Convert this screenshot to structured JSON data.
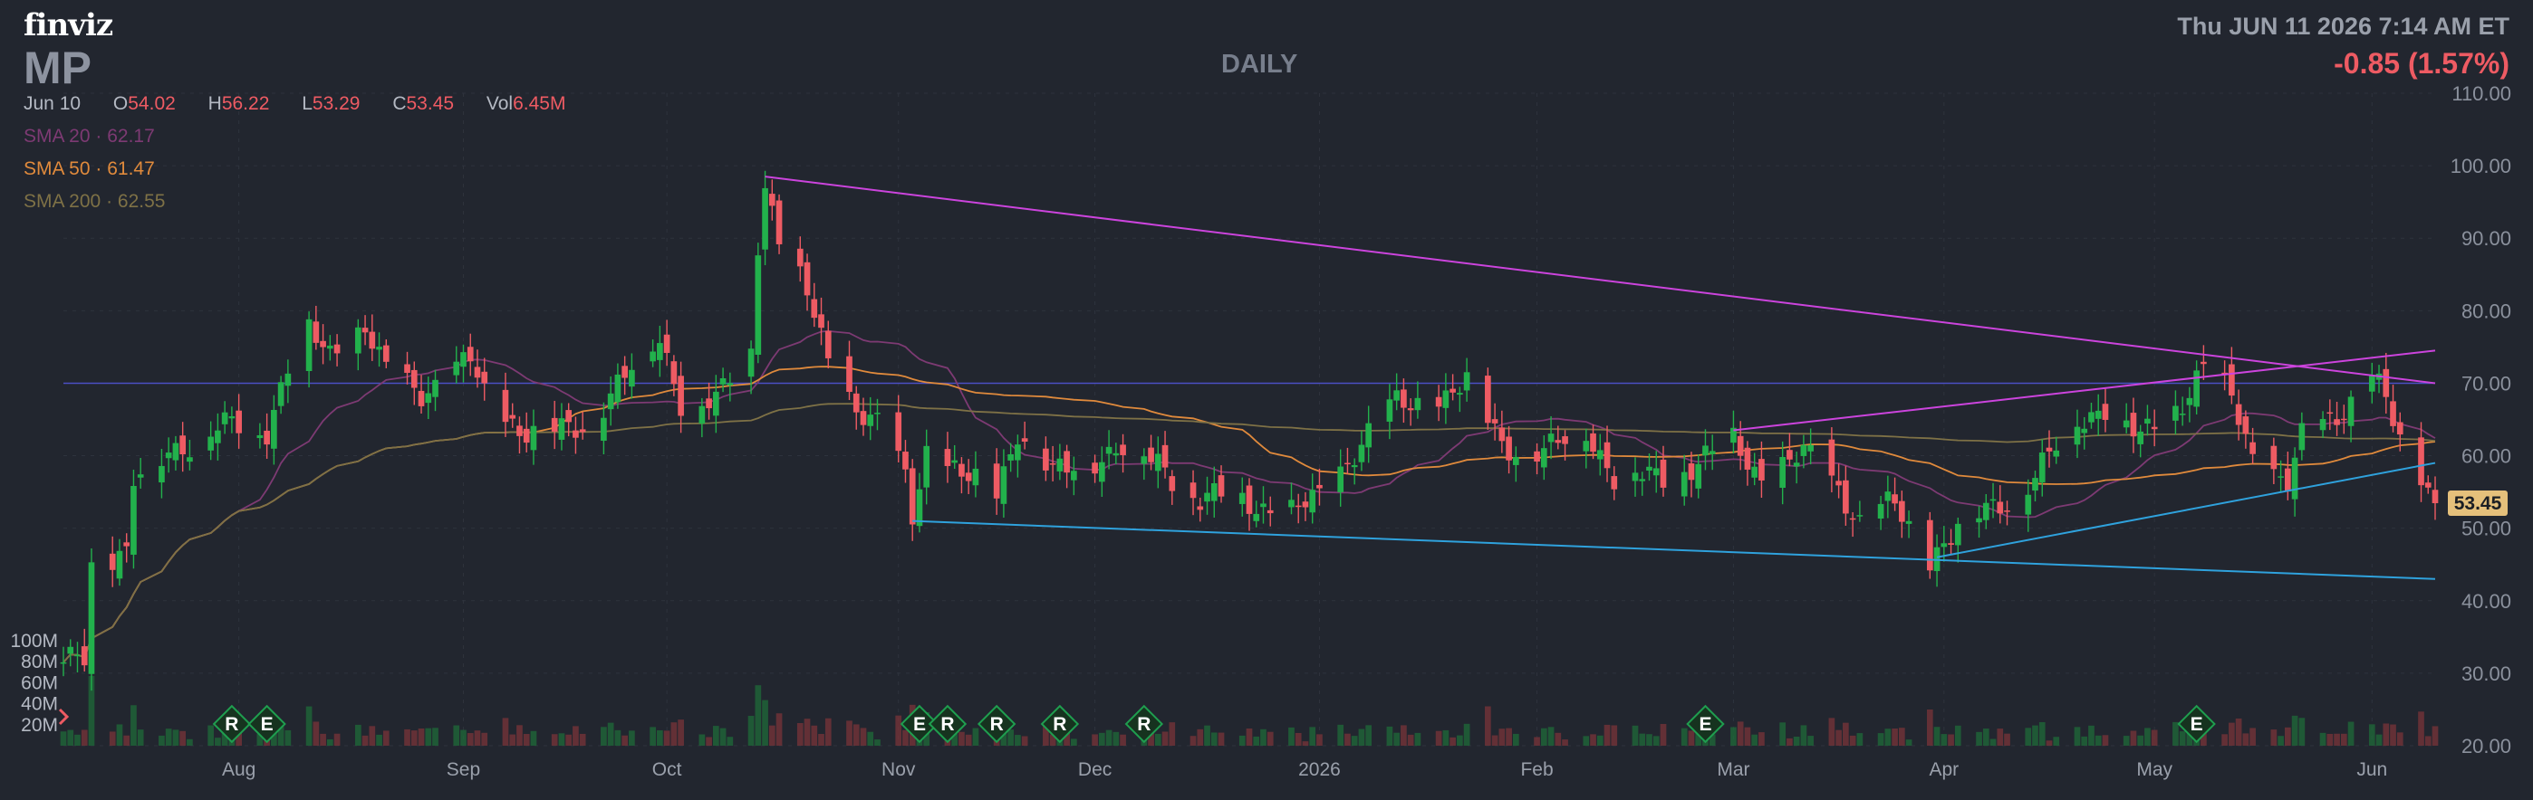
{
  "brand": "finviz",
  "ticker": "MP",
  "timeframe": "DAILY",
  "datetime": "Thu JUN 11 2026 7:14 AM ET",
  "change": "-0.85 (1.57%)",
  "ohlc": {
    "date": "Jun 10",
    "o_label": "O",
    "o": "54.02",
    "h_label": "H",
    "h": "56.22",
    "l_label": "L",
    "l": "53.29",
    "c_label": "C",
    "c": "53.45",
    "vol_label": "Vol",
    "vol": "6.45M"
  },
  "sma": [
    {
      "label": "SMA 20",
      "sep": "·",
      "value": "62.17",
      "color": "#7d3a73"
    },
    {
      "label": "SMA 50",
      "sep": "·",
      "value": "61.47",
      "color": "#e08a3c"
    },
    {
      "label": "SMA 200",
      "sep": "·",
      "value": "62.55",
      "color": "#7e7146"
    }
  ],
  "colors": {
    "background": "#22262f",
    "up": "#22b14c",
    "down": "#ee5b63",
    "trend_upper": "#cc44dd",
    "trend_lower": "#2fa2dd",
    "horizontal": "#4b4fc4",
    "event": "#1f9e4f"
  },
  "chart_data": {
    "type": "candlestick",
    "ylim": [
      20,
      110
    ],
    "y_ticks": [
      "110.00",
      "100.00",
      "90.00",
      "80.00",
      "70.00",
      "60.00",
      "50.00",
      "40.00",
      "30.00",
      "20.00"
    ],
    "y_tick_values": [
      110,
      100,
      90,
      80,
      70,
      60,
      50,
      40,
      30,
      20
    ],
    "volume_ticks": [
      "100M",
      "80M",
      "60M",
      "40M",
      "20M"
    ],
    "volume_tick_values": [
      100,
      80,
      60,
      40,
      20
    ],
    "x_labels": [
      {
        "label": "Aug",
        "date": "2025-08-01"
      },
      {
        "label": "Sep",
        "date": "2025-09-02"
      },
      {
        "label": "Oct",
        "date": "2025-10-01"
      },
      {
        "label": "Nov",
        "date": "2025-11-03"
      },
      {
        "label": "Dec",
        "date": "2025-12-01"
      },
      {
        "label": "2026",
        "date": "2026-01-02"
      },
      {
        "label": "Feb",
        "date": "2026-02-02"
      },
      {
        "label": "Mar",
        "date": "2026-03-02"
      },
      {
        "label": "Apr",
        "date": "2026-04-01"
      },
      {
        "label": "May",
        "date": "2026-05-01"
      },
      {
        "label": "Jun",
        "date": "2026-06-01"
      }
    ],
    "last_price": "53.45",
    "price_path": [
      [
        "2025-07-07",
        31
      ],
      [
        "2025-07-10",
        33
      ],
      [
        "2025-07-11",
        46
      ],
      [
        "2025-07-16",
        46
      ],
      [
        "2025-07-17",
        56
      ],
      [
        "2025-07-22",
        61
      ],
      [
        "2025-07-25",
        62
      ],
      [
        "2025-07-31",
        64
      ],
      [
        "2025-08-05",
        64
      ],
      [
        "2025-08-08",
        72
      ],
      [
        "2025-08-11",
        77
      ],
      [
        "2025-08-14",
        74
      ],
      [
        "2025-08-19",
        78
      ],
      [
        "2025-08-22",
        71
      ],
      [
        "2025-08-27",
        69
      ],
      [
        "2025-09-03",
        73
      ],
      [
        "2025-09-05",
        68
      ],
      [
        "2025-09-10",
        64
      ],
      [
        "2025-09-16",
        63
      ],
      [
        "2025-09-19",
        64
      ],
      [
        "2025-09-24",
        70
      ],
      [
        "2025-09-30",
        76
      ],
      [
        "2025-10-03",
        68
      ],
      [
        "2025-10-08",
        67
      ],
      [
        "2025-10-13",
        75
      ],
      [
        "2025-10-14",
        90
      ],
      [
        "2025-10-15",
        98
      ],
      [
        "2025-10-17",
        90
      ],
      [
        "2025-10-21",
        82
      ],
      [
        "2025-10-24",
        73
      ],
      [
        "2025-10-28",
        67
      ],
      [
        "2025-10-31",
        64
      ],
      [
        "2025-11-04",
        57
      ],
      [
        "2025-11-05",
        52
      ],
      [
        "2025-11-07",
        61
      ],
      [
        "2025-11-12",
        57
      ],
      [
        "2025-11-17",
        55
      ],
      [
        "2025-11-20",
        64
      ],
      [
        "2025-11-25",
        57
      ],
      [
        "2025-12-01",
        60
      ],
      [
        "2025-12-05",
        61
      ],
      [
        "2025-12-10",
        59
      ],
      [
        "2025-12-16",
        54
      ],
      [
        "2025-12-22",
        54
      ],
      [
        "2025-12-29",
        52
      ],
      [
        "2026-01-02",
        54
      ],
      [
        "2026-01-07",
        61
      ],
      [
        "2026-01-13",
        67
      ],
      [
        "2026-01-20",
        68
      ],
      [
        "2026-01-23",
        70
      ],
      [
        "2026-01-28",
        62
      ],
      [
        "2026-02-03",
        60
      ],
      [
        "2026-02-09",
        64
      ],
      [
        "2026-02-13",
        57
      ],
      [
        "2026-02-20",
        57
      ],
      [
        "2026-02-27",
        60
      ],
      [
        "2026-03-02",
        62
      ],
      [
        "2026-03-06",
        57
      ],
      [
        "2026-03-12",
        60
      ],
      [
        "2026-03-17",
        56
      ],
      [
        "2026-03-20",
        51
      ],
      [
        "2026-03-25",
        53
      ],
      [
        "2026-03-30",
        46
      ],
      [
        "2026-04-03",
        50
      ],
      [
        "2026-04-08",
        53
      ],
      [
        "2026-04-14",
        57
      ],
      [
        "2026-04-20",
        65
      ],
      [
        "2026-04-24",
        67
      ],
      [
        "2026-04-29",
        62
      ],
      [
        "2026-05-05",
        68
      ],
      [
        "2026-05-08",
        72
      ],
      [
        "2026-05-12",
        68
      ],
      [
        "2026-05-15",
        60
      ],
      [
        "2026-05-20",
        56
      ],
      [
        "2026-05-22",
        62
      ],
      [
        "2026-05-27",
        66
      ],
      [
        "2026-06-01",
        71
      ],
      [
        "2026-06-03",
        67
      ],
      [
        "2026-06-05",
        62
      ],
      [
        "2026-06-08",
        58
      ],
      [
        "2026-06-10",
        53.45
      ]
    ],
    "trendlines": [
      {
        "name": "upper-resistance",
        "from": [
          "2025-10-15",
          98.5
        ],
        "to": [
          "2026-06-10",
          70
        ]
      },
      {
        "name": "lower-support",
        "from": [
          "2025-11-05",
          51
        ],
        "to": [
          "2026-06-10",
          43
        ]
      },
      {
        "name": "rising-support",
        "from": [
          "2026-03-31",
          46
        ],
        "to": [
          "2026-06-10",
          59
        ]
      },
      {
        "name": "rising-resistance",
        "from": [
          "2026-03-02",
          63.5
        ],
        "to": [
          "2026-06-10",
          74.5
        ]
      },
      {
        "name": "horizontal-level",
        "from": [
          "2025-07-07",
          70
        ],
        "to": [
          "2026-06-10",
          70
        ]
      }
    ],
    "events": [
      {
        "label": "R",
        "date": "2025-07-31"
      },
      {
        "label": "E",
        "date": "2025-08-05"
      },
      {
        "label": "E",
        "date": "2025-11-06"
      },
      {
        "label": "R",
        "date": "2025-11-10"
      },
      {
        "label": "R",
        "date": "2025-11-17"
      },
      {
        "label": "R",
        "date": "2025-11-26"
      },
      {
        "label": "R",
        "date": "2025-12-08"
      },
      {
        "label": "E",
        "date": "2026-02-26"
      },
      {
        "label": "E",
        "date": "2026-05-07"
      }
    ]
  }
}
